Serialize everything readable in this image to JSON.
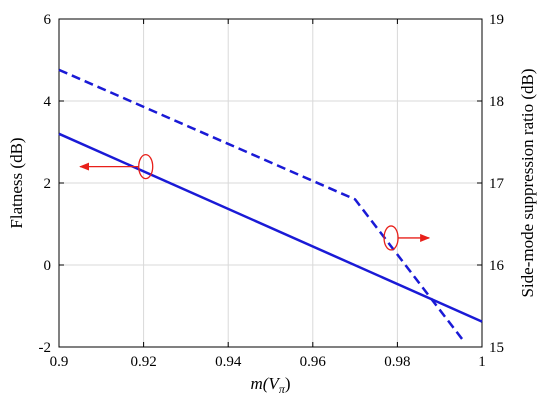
{
  "chart_data": {
    "type": "line",
    "xlabel": "m(V",
    "xlabel_sub": "π",
    "xlabel_close": ")",
    "ylabel_left": "Flatness (dB)",
    "ylabel_right": "Side-mode suppression ratio (dB)",
    "xlim": [
      0.9,
      1.0
    ],
    "ylim_left": [
      -2,
      6
    ],
    "ylim_right": [
      15,
      19
    ],
    "x_ticks": [
      0.9,
      0.92,
      0.94,
      0.96,
      0.98,
      1.0
    ],
    "x_tick_labels": [
      "0.9",
      "0.92",
      "0.94",
      "0.96",
      "0.98",
      "1"
    ],
    "yleft_ticks": [
      -2,
      0,
      2,
      4,
      6
    ],
    "yleft_tick_labels": [
      "-2",
      "0",
      "2",
      "4",
      "6"
    ],
    "yright_ticks": [
      15,
      16,
      17,
      18,
      19
    ],
    "yright_tick_labels": [
      "15",
      "16",
      "17",
      "18",
      "19"
    ],
    "grid": true,
    "series": [
      {
        "axis": "left",
        "style": "solid",
        "color": "#1a1ad6",
        "x": [
          0.9,
          1.0
        ],
        "y": [
          3.2,
          -1.38
        ]
      },
      {
        "axis": "right",
        "style": "dashed",
        "color": "#1a1ad6",
        "x": [
          0.9,
          0.97,
          0.996
        ],
        "y": [
          18.38,
          16.8,
          15.05
        ]
      }
    ],
    "annotations": [
      {
        "type": "ellipse-arrow",
        "direction": "left",
        "axis": "left",
        "x": 0.9205,
        "y": 2.4,
        "arrow_to_x": 0.905,
        "color": "#e8201a"
      },
      {
        "type": "ellipse-arrow",
        "direction": "right",
        "axis": "right",
        "x": 0.9785,
        "y": 16.33,
        "arrow_to_x": 0.9875,
        "color": "#e8201a"
      }
    ]
  }
}
